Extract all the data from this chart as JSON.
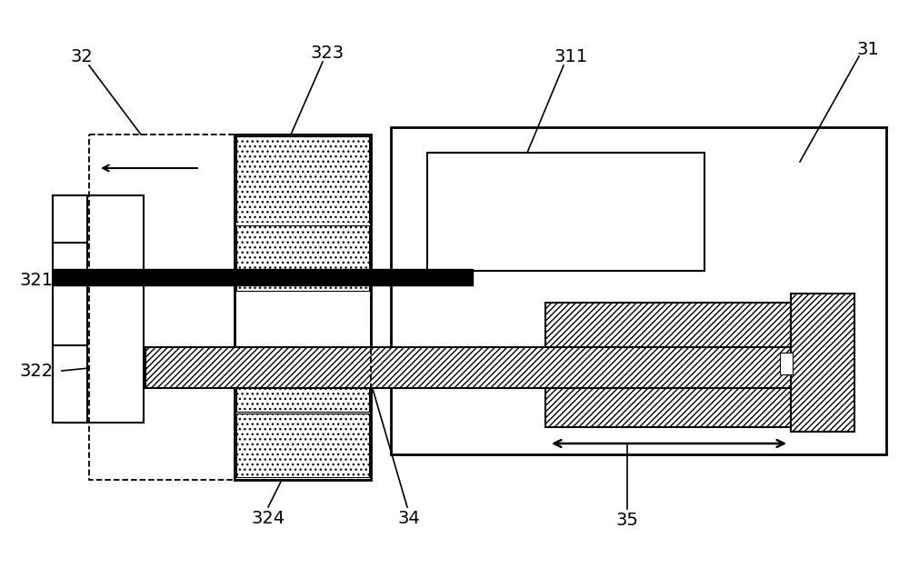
{
  "bg_color": "#ffffff",
  "line_color": "#000000",
  "fig_width": 10.0,
  "fig_height": 6.25
}
